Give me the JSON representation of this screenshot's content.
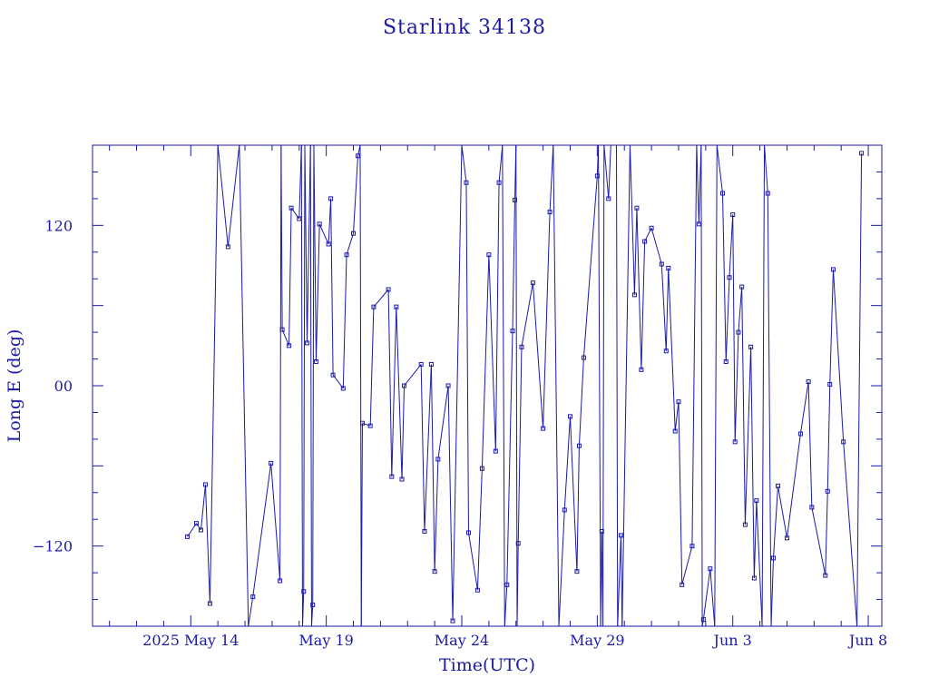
{
  "chart_data": {
    "type": "scatter",
    "title": "Starlink 34138",
    "xlabel": "Time(UTC)",
    "ylabel": "Long E (deg)",
    "xlim": [
      "2025-05-10T09:00",
      "2025-06-08T12:00"
    ],
    "ylim": [
      -180,
      180
    ],
    "x_ticks": [
      {
        "date": "2025-05-14",
        "label": "2025 May 14"
      },
      {
        "date": "2025-05-19",
        "label": "May 19"
      },
      {
        "date": "2025-05-24",
        "label": "May 24"
      },
      {
        "date": "2025-05-29",
        "label": "May 29"
      },
      {
        "date": "2025-06-03",
        "label": "Jun  3"
      },
      {
        "date": "2025-06-08",
        "label": "Jun  8"
      }
    ],
    "y_ticks": [
      {
        "value": 120,
        "label": "120"
      },
      {
        "value": 0,
        "label": "00"
      },
      {
        "value": -120,
        "label": "−120"
      }
    ],
    "grid": false,
    "series": [
      {
        "style": "lines+markers",
        "color": "#1a1aa6",
        "points": [
          [
            "2025-05-13T21:00",
            -113
          ],
          [
            "2025-05-14T05:00",
            -103
          ],
          [
            "2025-05-14T09:00",
            -108
          ],
          [
            "2025-05-14T13:00",
            -74
          ],
          [
            "2025-05-14T17:00",
            -163
          ],
          [
            "2025-05-15T00:00",
            185
          ],
          [
            "2025-05-15T09:00",
            104
          ],
          [
            "2025-05-15T19:00",
            185
          ],
          [
            "2025-05-16T03:00",
            -185
          ],
          [
            "2025-05-16T07:00",
            -158
          ],
          [
            "2025-05-16T23:00",
            -58
          ],
          [
            "2025-05-17T07:00",
            -146
          ],
          [
            "2025-05-17T08:00",
            185
          ],
          [
            "2025-05-17T09:00",
            42
          ],
          [
            "2025-05-17T15:00",
            30
          ],
          [
            "2025-05-17T17:00",
            133
          ],
          [
            "2025-05-18T00:00",
            125
          ],
          [
            "2025-05-18T02:00",
            185
          ],
          [
            "2025-05-18T03:00",
            -185
          ],
          [
            "2025-05-18T04:00",
            -154
          ],
          [
            "2025-05-18T05:00",
            185
          ],
          [
            "2025-05-18T07:00",
            32
          ],
          [
            "2025-05-18T10:00",
            185
          ],
          [
            "2025-05-18T11:00",
            -185
          ],
          [
            "2025-05-18T12:00",
            -164
          ],
          [
            "2025-05-18T13:00",
            185
          ],
          [
            "2025-05-18T15:00",
            18
          ],
          [
            "2025-05-18T18:00",
            121
          ],
          [
            "2025-05-19T02:00",
            106
          ],
          [
            "2025-05-19T04:00",
            140
          ],
          [
            "2025-05-19T06:00",
            8
          ],
          [
            "2025-05-19T15:00",
            -2
          ],
          [
            "2025-05-19T18:00",
            98
          ],
          [
            "2025-05-20T00:00",
            114
          ],
          [
            "2025-05-20T04:00",
            172
          ],
          [
            "2025-05-20T06:00",
            185
          ],
          [
            "2025-05-20T07:00",
            -185
          ],
          [
            "2025-05-20T08:00",
            -28
          ],
          [
            "2025-05-20T15:00",
            -30
          ],
          [
            "2025-05-20T18:00",
            59
          ],
          [
            "2025-05-21T07:00",
            72
          ],
          [
            "2025-05-21T10:00",
            -68
          ],
          [
            "2025-05-21T14:00",
            59
          ],
          [
            "2025-05-21T19:00",
            -70
          ],
          [
            "2025-05-21T21:00",
            0
          ],
          [
            "2025-05-22T12:00",
            16
          ],
          [
            "2025-05-22T15:00",
            -109
          ],
          [
            "2025-05-22T21:00",
            16
          ],
          [
            "2025-05-23T00:00",
            -139
          ],
          [
            "2025-05-23T03:00",
            -55
          ],
          [
            "2025-05-23T12:00",
            0
          ],
          [
            "2025-05-23T16:00",
            -176
          ],
          [
            "2025-05-24T00:00",
            185
          ],
          [
            "2025-05-24T04:00",
            152
          ],
          [
            "2025-05-24T06:00",
            -110
          ],
          [
            "2025-05-24T14:00",
            -153
          ],
          [
            "2025-05-24T18:00",
            -62
          ],
          [
            "2025-05-25T00:00",
            98
          ],
          [
            "2025-05-25T06:00",
            -49
          ],
          [
            "2025-05-25T09:00",
            152
          ],
          [
            "2025-05-25T12:00",
            185
          ],
          [
            "2025-05-25T14:00",
            -185
          ],
          [
            "2025-05-25T16:00",
            -149
          ],
          [
            "2025-05-25T21:00",
            41
          ],
          [
            "2025-05-25T23:00",
            139
          ],
          [
            "2025-05-26T00:00",
            185
          ],
          [
            "2025-05-26T01:00",
            -185
          ],
          [
            "2025-05-26T02:00",
            -118
          ],
          [
            "2025-05-26T05:00",
            29
          ],
          [
            "2025-05-26T15:00",
            77
          ],
          [
            "2025-05-27T00:00",
            -32
          ],
          [
            "2025-05-27T06:00",
            130
          ],
          [
            "2025-05-27T09:00",
            185
          ],
          [
            "2025-05-27T14:00",
            -185
          ],
          [
            "2025-05-27T19:00",
            -93
          ],
          [
            "2025-05-28T00:00",
            -23
          ],
          [
            "2025-05-28T06:00",
            -139
          ],
          [
            "2025-05-28T08:00",
            -45
          ],
          [
            "2025-05-28T12:00",
            21
          ],
          [
            "2025-05-29T00:00",
            157
          ],
          [
            "2025-05-29T01:00",
            185
          ],
          [
            "2025-05-29T03:00",
            -185
          ],
          [
            "2025-05-29T04:00",
            -109
          ],
          [
            "2025-05-29T05:00",
            -185
          ],
          [
            "2025-05-29T06:00",
            185
          ],
          [
            "2025-05-29T10:00",
            140
          ],
          [
            "2025-05-29T12:00",
            185
          ],
          [
            "2025-05-29T17:00",
            185
          ],
          [
            "2025-05-29T18:00",
            -185
          ],
          [
            "2025-05-29T21:00",
            -112
          ],
          [
            "2025-05-29T22:00",
            -185
          ],
          [
            "2025-05-30T05:00",
            185
          ],
          [
            "2025-05-30T09:00",
            68
          ],
          [
            "2025-05-30T11:00",
            133
          ],
          [
            "2025-05-30T15:00",
            12
          ],
          [
            "2025-05-30T18:00",
            108
          ],
          [
            "2025-05-31T00:00",
            118
          ],
          [
            "2025-05-31T09:00",
            91
          ],
          [
            "2025-05-31T13:00",
            26
          ],
          [
            "2025-05-31T15:00",
            88
          ],
          [
            "2025-05-31T21:00",
            -34
          ],
          [
            "2025-06-01T00:00",
            -12
          ],
          [
            "2025-06-01T03:00",
            -149
          ],
          [
            "2025-06-01T12:00",
            -120
          ],
          [
            "2025-06-01T16:00",
            185
          ],
          [
            "2025-06-01T18:00",
            121
          ],
          [
            "2025-06-01T20:00",
            185
          ],
          [
            "2025-06-01T21:00",
            -185
          ],
          [
            "2025-06-01T22:00",
            -175
          ],
          [
            "2025-06-02T04:00",
            -137
          ],
          [
            "2025-06-02T08:00",
            -185
          ],
          [
            "2025-06-02T10:00",
            185
          ],
          [
            "2025-06-02T15:00",
            144
          ],
          [
            "2025-06-02T18:00",
            18
          ],
          [
            "2025-06-02T21:00",
            81
          ],
          [
            "2025-06-03T00:00",
            128
          ],
          [
            "2025-06-03T02:00",
            -42
          ],
          [
            "2025-06-03T05:00",
            40
          ],
          [
            "2025-06-03T08:00",
            74
          ],
          [
            "2025-06-03T11:00",
            -104
          ],
          [
            "2025-06-03T16:00",
            29
          ],
          [
            "2025-06-03T19:00",
            -144
          ],
          [
            "2025-06-03T21:00",
            -86
          ],
          [
            "2025-06-04T02:00",
            -185
          ],
          [
            "2025-06-04T04:00",
            185
          ],
          [
            "2025-06-04T07:00",
            144
          ],
          [
            "2025-06-04T10:00",
            -185
          ],
          [
            "2025-06-04T12:00",
            -129
          ],
          [
            "2025-06-04T16:00",
            -75
          ],
          [
            "2025-06-05T00:00",
            -114
          ],
          [
            "2025-06-05T12:00",
            -36
          ],
          [
            "2025-06-05T19:00",
            3
          ],
          [
            "2025-06-05T22:00",
            -91
          ],
          [
            "2025-06-06T10:00",
            -142
          ],
          [
            "2025-06-06T12:00",
            -79
          ],
          [
            "2025-06-06T14:00",
            1
          ],
          [
            "2025-06-06T17:00",
            87
          ],
          [
            "2025-06-07T02:00",
            -42
          ],
          [
            "2025-06-07T14:00",
            -185
          ],
          [
            "2025-06-07T18:00",
            174
          ]
        ]
      }
    ]
  }
}
